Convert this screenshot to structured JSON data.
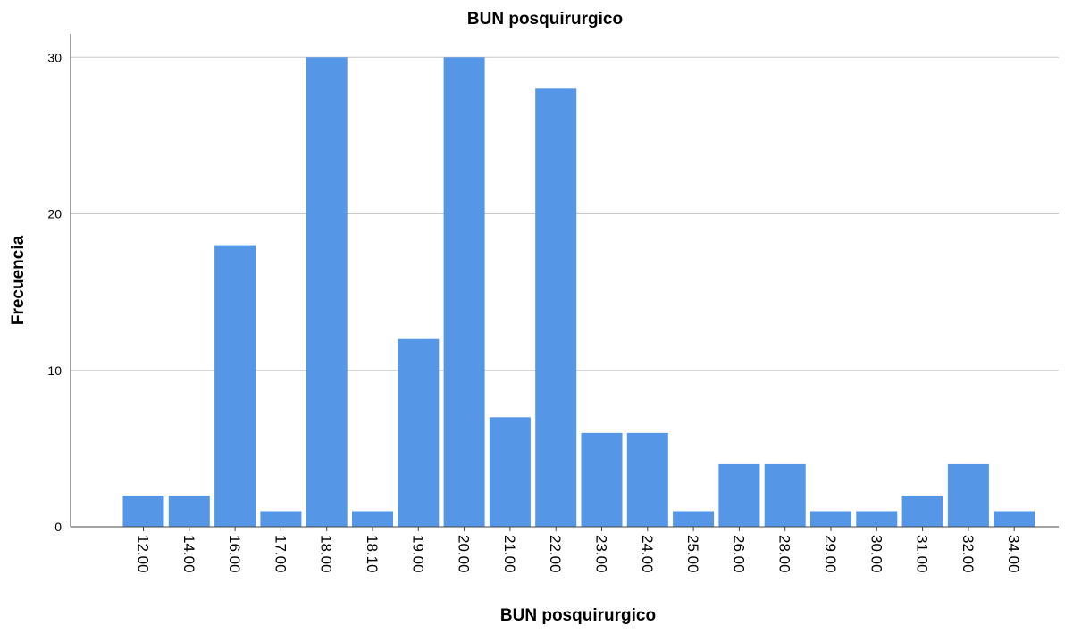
{
  "chart_data": {
    "type": "bar",
    "title": "BUN posquirurgico",
    "xlabel": "BUN posquirurgico",
    "ylabel": "Frecuencia",
    "categories": [
      "12.00",
      "14.00",
      "16.00",
      "17.00",
      "18.00",
      "18.10",
      "19.00",
      "20.00",
      "21.00",
      "22.00",
      "23.00",
      "24.00",
      "25.00",
      "26.00",
      "28.00",
      "29.00",
      "30.00",
      "31.00",
      "32.00",
      "34.00"
    ],
    "values": [
      2,
      2,
      18,
      1,
      30,
      1,
      12,
      30,
      7,
      28,
      6,
      6,
      1,
      4,
      4,
      1,
      1,
      2,
      4,
      1
    ],
    "ylim": [
      0,
      31.5
    ],
    "yticks": [
      0,
      10,
      20,
      30
    ],
    "grid": true,
    "bar_color": "#5596e6"
  }
}
